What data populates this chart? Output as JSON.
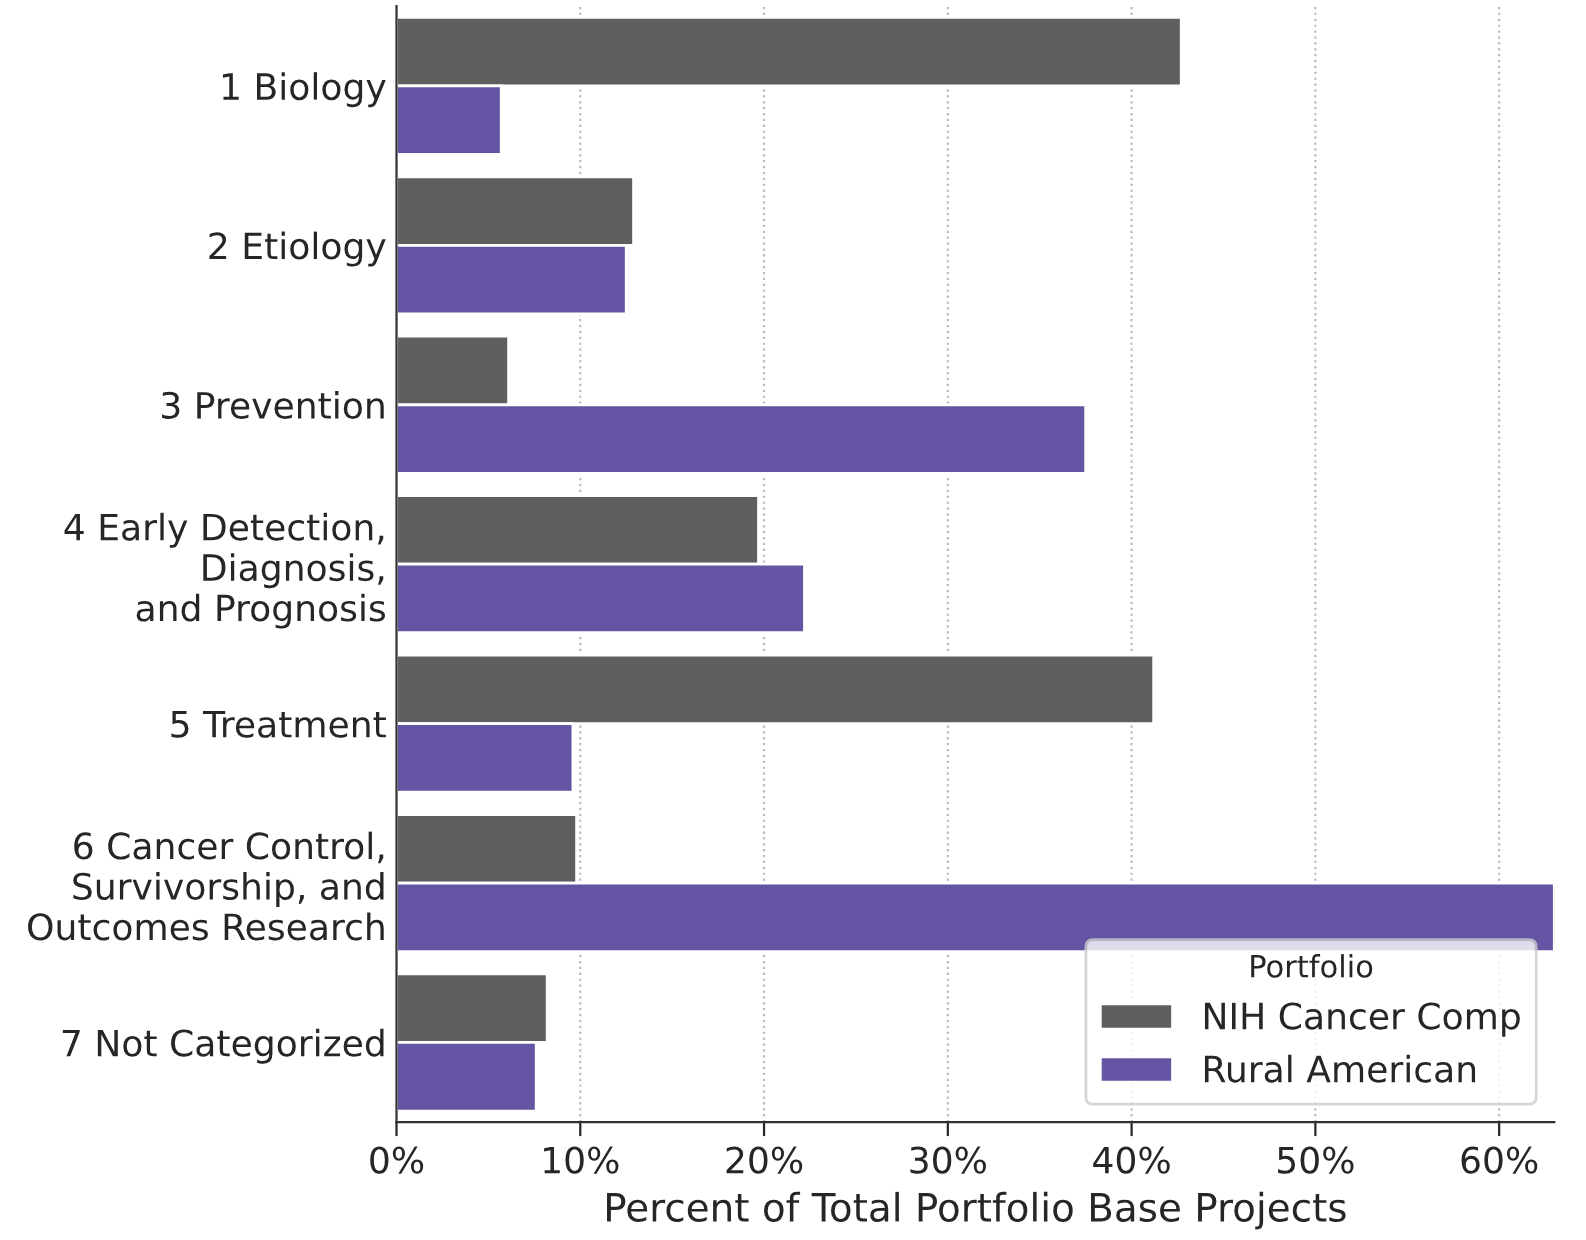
{
  "chart_data": {
    "type": "bar",
    "orientation": "horizontal",
    "xlabel": "Percent of Total Portfolio Base Projects",
    "legend_title": "Portfolio",
    "legend": "bottom right",
    "grid": "x",
    "categories": [
      "1 Biology",
      "2 Etiology",
      "3 Prevention",
      "4 Early Detection,\nDiagnosis,\nand Prognosis",
      "5 Treatment",
      "6 Cancer Control,\nSurvivorship, and\nOutcomes Research",
      "7 Not Categorized"
    ],
    "series": [
      {
        "name": "NIH Cancer Comp",
        "color": "#5f5f5f",
        "values": [
          42.7,
          12.9,
          6.1,
          19.7,
          41.2,
          9.8,
          8.2
        ]
      },
      {
        "name": "Rural American",
        "color": "#6554a3",
        "values": [
          5.7,
          12.5,
          37.5,
          22.2,
          9.6,
          63,
          7.6
        ]
      }
    ],
    "xlim": [
      0,
      63
    ],
    "xticks": [
      {
        "value": 0,
        "label": "0%"
      },
      {
        "value": 10,
        "label": "10%"
      },
      {
        "value": 20,
        "label": "20%"
      },
      {
        "value": 30,
        "label": "30%"
      },
      {
        "value": 40,
        "label": "40%"
      },
      {
        "value": 50,
        "label": "50%"
      },
      {
        "value": 60,
        "label": "60%"
      }
    ]
  }
}
